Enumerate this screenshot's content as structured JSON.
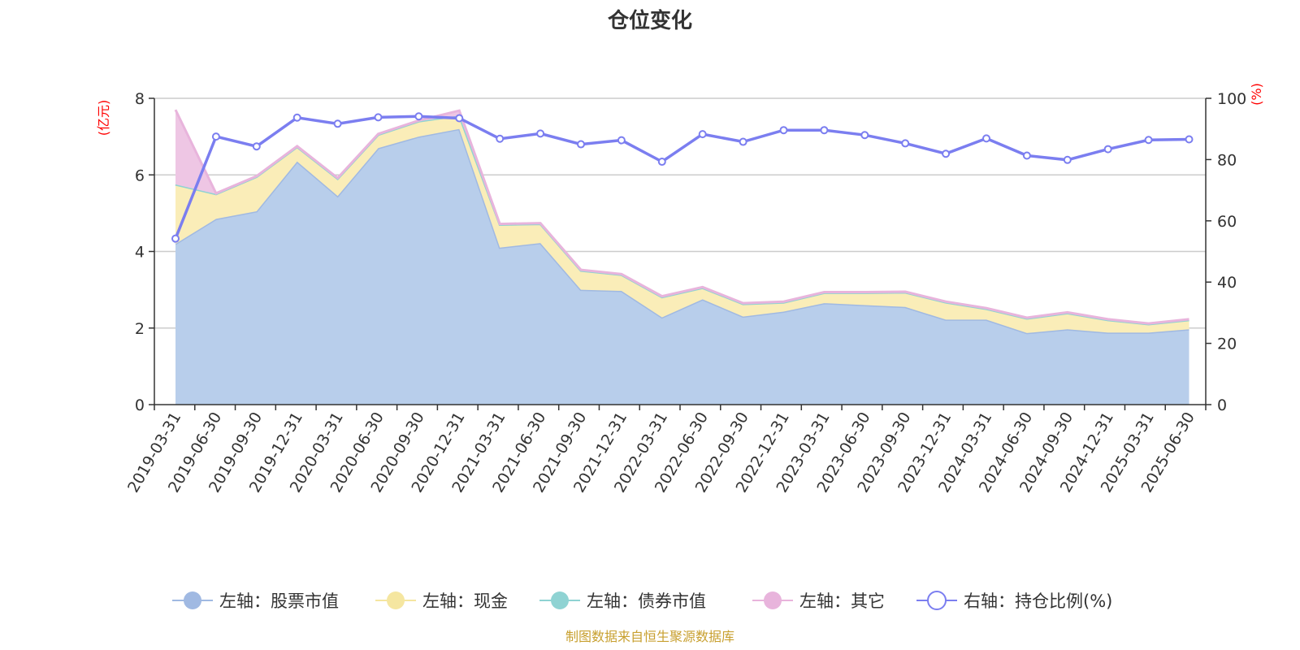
{
  "chart_data": {
    "type": "area",
    "title": "仓位变化",
    "left_axis_unit": "(亿元)",
    "right_axis_unit": "(%)",
    "ylim": [
      0,
      8
    ],
    "y_ticks": [
      0,
      2,
      4,
      6,
      8
    ],
    "y2lim": [
      0,
      100
    ],
    "y2_ticks": [
      0,
      20,
      40,
      60,
      80,
      100
    ],
    "grid": true,
    "legend_position": "bottom",
    "categories": [
      "2019-03-31",
      "2019-06-30",
      "2019-09-30",
      "2019-12-31",
      "2020-03-31",
      "2020-06-30",
      "2020-09-30",
      "2020-12-31",
      "2021-03-31",
      "2021-06-30",
      "2021-09-30",
      "2021-12-31",
      "2022-03-31",
      "2022-06-30",
      "2022-09-30",
      "2022-12-31",
      "2023-03-31",
      "2023-06-30",
      "2023-09-30",
      "2023-12-31",
      "2024-03-31",
      "2024-06-30",
      "2024-09-30",
      "2024-12-31",
      "2025-03-31",
      "2025-06-30"
    ],
    "series": [
      {
        "name": "左轴：股票市值",
        "axis": "left",
        "stacked": true,
        "color": "#a0b9e2",
        "fill": "#b8ceeb",
        "values": [
          4.2,
          4.85,
          5.05,
          6.35,
          5.45,
          6.7,
          7.0,
          7.2,
          4.1,
          4.22,
          3.0,
          2.97,
          2.28,
          2.75,
          2.3,
          2.43,
          2.65,
          2.6,
          2.55,
          2.22,
          2.22,
          1.87,
          1.97,
          1.88,
          1.88,
          1.97
        ]
      },
      {
        "name": "左轴：现金",
        "axis": "left",
        "stacked": true,
        "color": "#f5e6a0",
        "fill": "#faedb8",
        "values": [
          1.55,
          0.65,
          0.9,
          0.38,
          0.45,
          0.35,
          0.4,
          0.35,
          0.6,
          0.5,
          0.5,
          0.42,
          0.53,
          0.3,
          0.33,
          0.24,
          0.27,
          0.32,
          0.38,
          0.45,
          0.28,
          0.38,
          0.42,
          0.33,
          0.22,
          0.24
        ]
      },
      {
        "name": "左轴：债券市值",
        "axis": "left",
        "stacked": true,
        "color": "#8fd3d3",
        "fill": "#a8dcdc",
        "values": [
          0,
          0,
          0,
          0,
          0,
          0,
          0,
          0,
          0,
          0,
          0,
          0,
          0,
          0,
          0,
          0,
          0,
          0,
          0,
          0,
          0,
          0,
          0,
          0,
          0,
          0
        ]
      },
      {
        "name": "左轴：其它",
        "axis": "left",
        "stacked": true,
        "color": "#e8b4dc",
        "fill": "#eec6e4",
        "values": [
          1.95,
          0.02,
          0.02,
          0.02,
          0.02,
          0.02,
          0.02,
          0.13,
          0.02,
          0.02,
          0.02,
          0.02,
          0.02,
          0.02,
          0.02,
          0.02,
          0.02,
          0.02,
          0.02,
          0.02,
          0.02,
          0.02,
          0.02,
          0.02,
          0.02,
          0.02
        ]
      },
      {
        "name": "右轴：持仓比例(%)",
        "axis": "right",
        "type": "line",
        "color": "#7b7ef0",
        "values": [
          54.2,
          87.5,
          84.3,
          93.7,
          91.7,
          93.8,
          94.1,
          93.5,
          86.8,
          88.5,
          85.0,
          86.3,
          79.3,
          88.3,
          85.8,
          89.6,
          89.6,
          88.0,
          85.3,
          81.9,
          86.9,
          81.3,
          79.9,
          83.4,
          86.4,
          86.6
        ]
      }
    ],
    "source": "制图数据来自恒生聚源数据库"
  }
}
